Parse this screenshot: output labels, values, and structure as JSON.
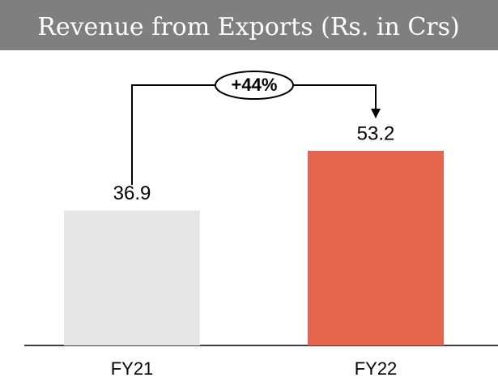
{
  "chart_data": {
    "type": "bar",
    "title": "Revenue from Exports (Rs. in Crs)",
    "categories": [
      "FY21",
      "FY22"
    ],
    "values": [
      36.9,
      53.2
    ],
    "colors": [
      "#e6e6e6",
      "#e5644e"
    ],
    "annotation": "+44%"
  }
}
